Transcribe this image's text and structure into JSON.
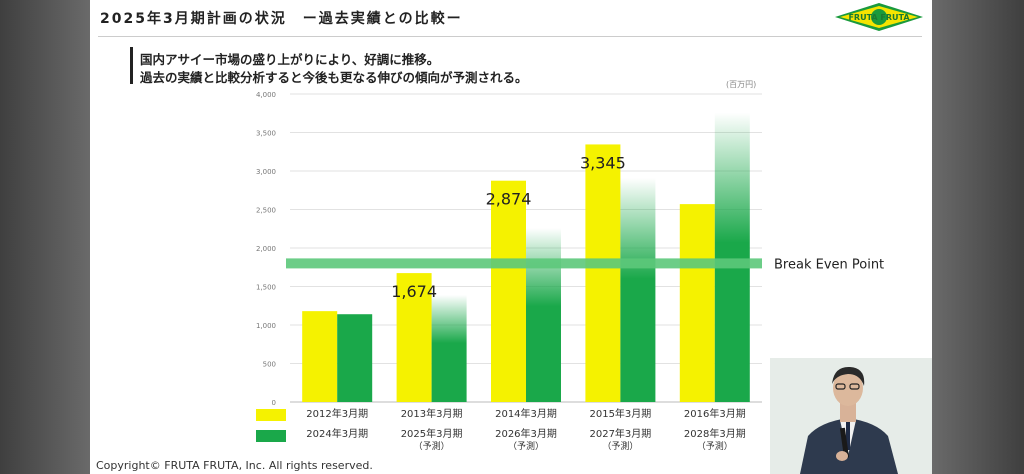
{
  "slide": {
    "title": "2025年3月期計画の状況　ー過去実績との比較ー",
    "subtitle_line1": "国内アサイー市場の盛り上がりにより、好調に推移。",
    "subtitle_line2": "過去の実績と比較分析すると今後も更なる伸びの傾向が予測される。",
    "logo_text": "FRUTA FRUTA",
    "copyright": "Copyright© FRUTA FRUTA, Inc. All rights reserved."
  },
  "chart_data": {
    "type": "bar",
    "unit_label": "(百万円)",
    "ylim": [
      0,
      4000
    ],
    "y_ticks": [
      "0",
      "500",
      "1,000",
      "1,500",
      "2,000",
      "2,500",
      "3,000",
      "3,500",
      "4,000"
    ],
    "groups": 5,
    "series": [
      {
        "name_lines": [
          [
            "2012年3月期"
          ],
          [
            "2013年3月期"
          ],
          [
            "2014年3月期"
          ],
          [
            "2015年3月期"
          ],
          [
            "2016年3月期"
          ]
        ],
        "color": "#f5f200",
        "values": [
          1180,
          1674,
          2874,
          3345,
          2570
        ]
      },
      {
        "name_lines": [
          [
            "2024年3月期"
          ],
          [
            "2025年3月期",
            "（予測）"
          ],
          [
            "2026年3月期",
            "（予測）"
          ],
          [
            "2027年3月期",
            "（予測）"
          ],
          [
            "2028年3月期",
            "（予測）"
          ]
        ],
        "color": "#1aa84a",
        "values": [
          1140,
          1390,
          2260,
          2910,
          3760
        ]
      }
    ],
    "data_labels": [
      {
        "group": 1,
        "text": "1,674"
      },
      {
        "group": 2,
        "text": "2,874"
      },
      {
        "group": 3,
        "text": "3,345"
      }
    ],
    "break_even": {
      "value": 1800,
      "label": "Break Even Point",
      "color": "#5cc87a"
    }
  },
  "presenter": {
    "description": "speaker video"
  }
}
